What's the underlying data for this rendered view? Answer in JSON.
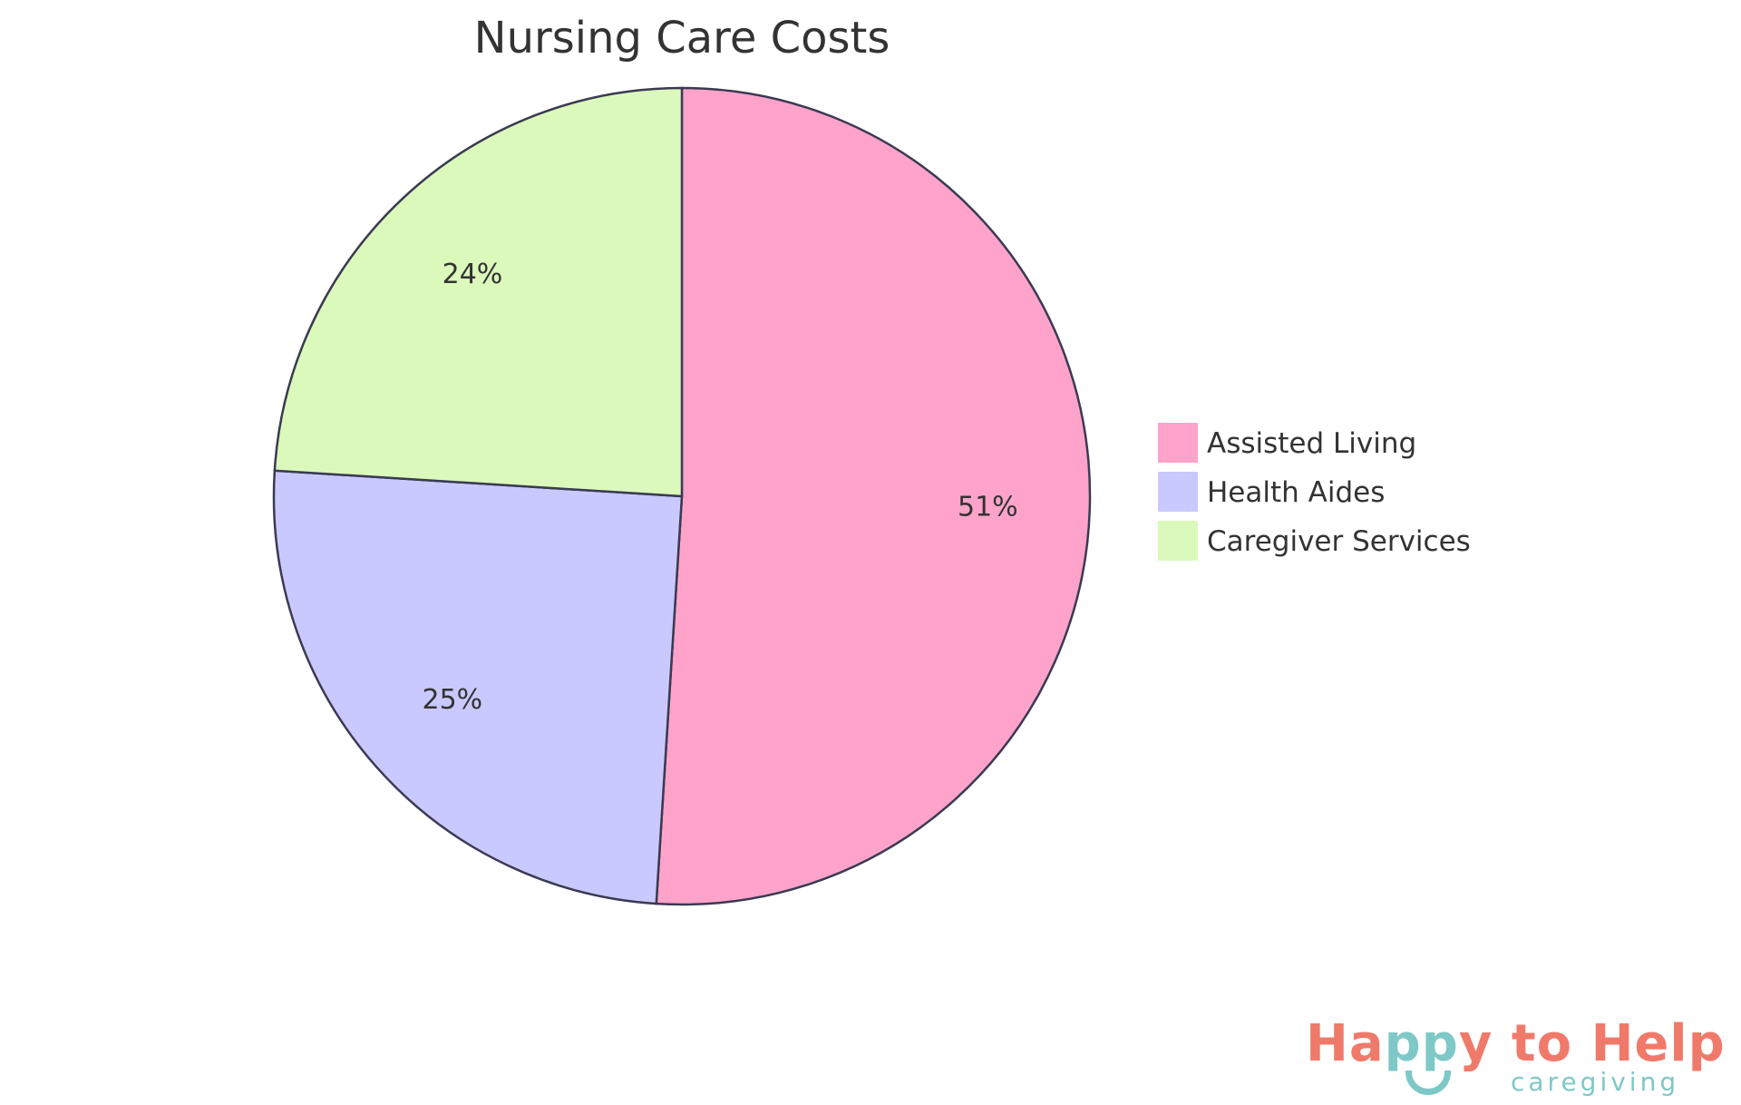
{
  "chart_data": {
    "type": "pie",
    "title": "Nursing Care Costs",
    "start_angle": "12 o'clock, clockwise",
    "slices": [
      {
        "label": "Assisted Living",
        "value": 51,
        "display": "51%",
        "color": "#ffa3cb"
      },
      {
        "label": "Health Aides",
        "value": 25,
        "display": "25%",
        "color": "#c9c9ff"
      },
      {
        "label": "Caregiver Services",
        "value": 24,
        "display": "24%",
        "color": "#dbf9bb"
      }
    ],
    "legend_position": "right",
    "stroke_color": "#3a3a52"
  },
  "logo": {
    "text": "Happy to Help",
    "part1": "Ha",
    "part2": "pp",
    "part3": "y to Help",
    "sub": "caregiving"
  }
}
